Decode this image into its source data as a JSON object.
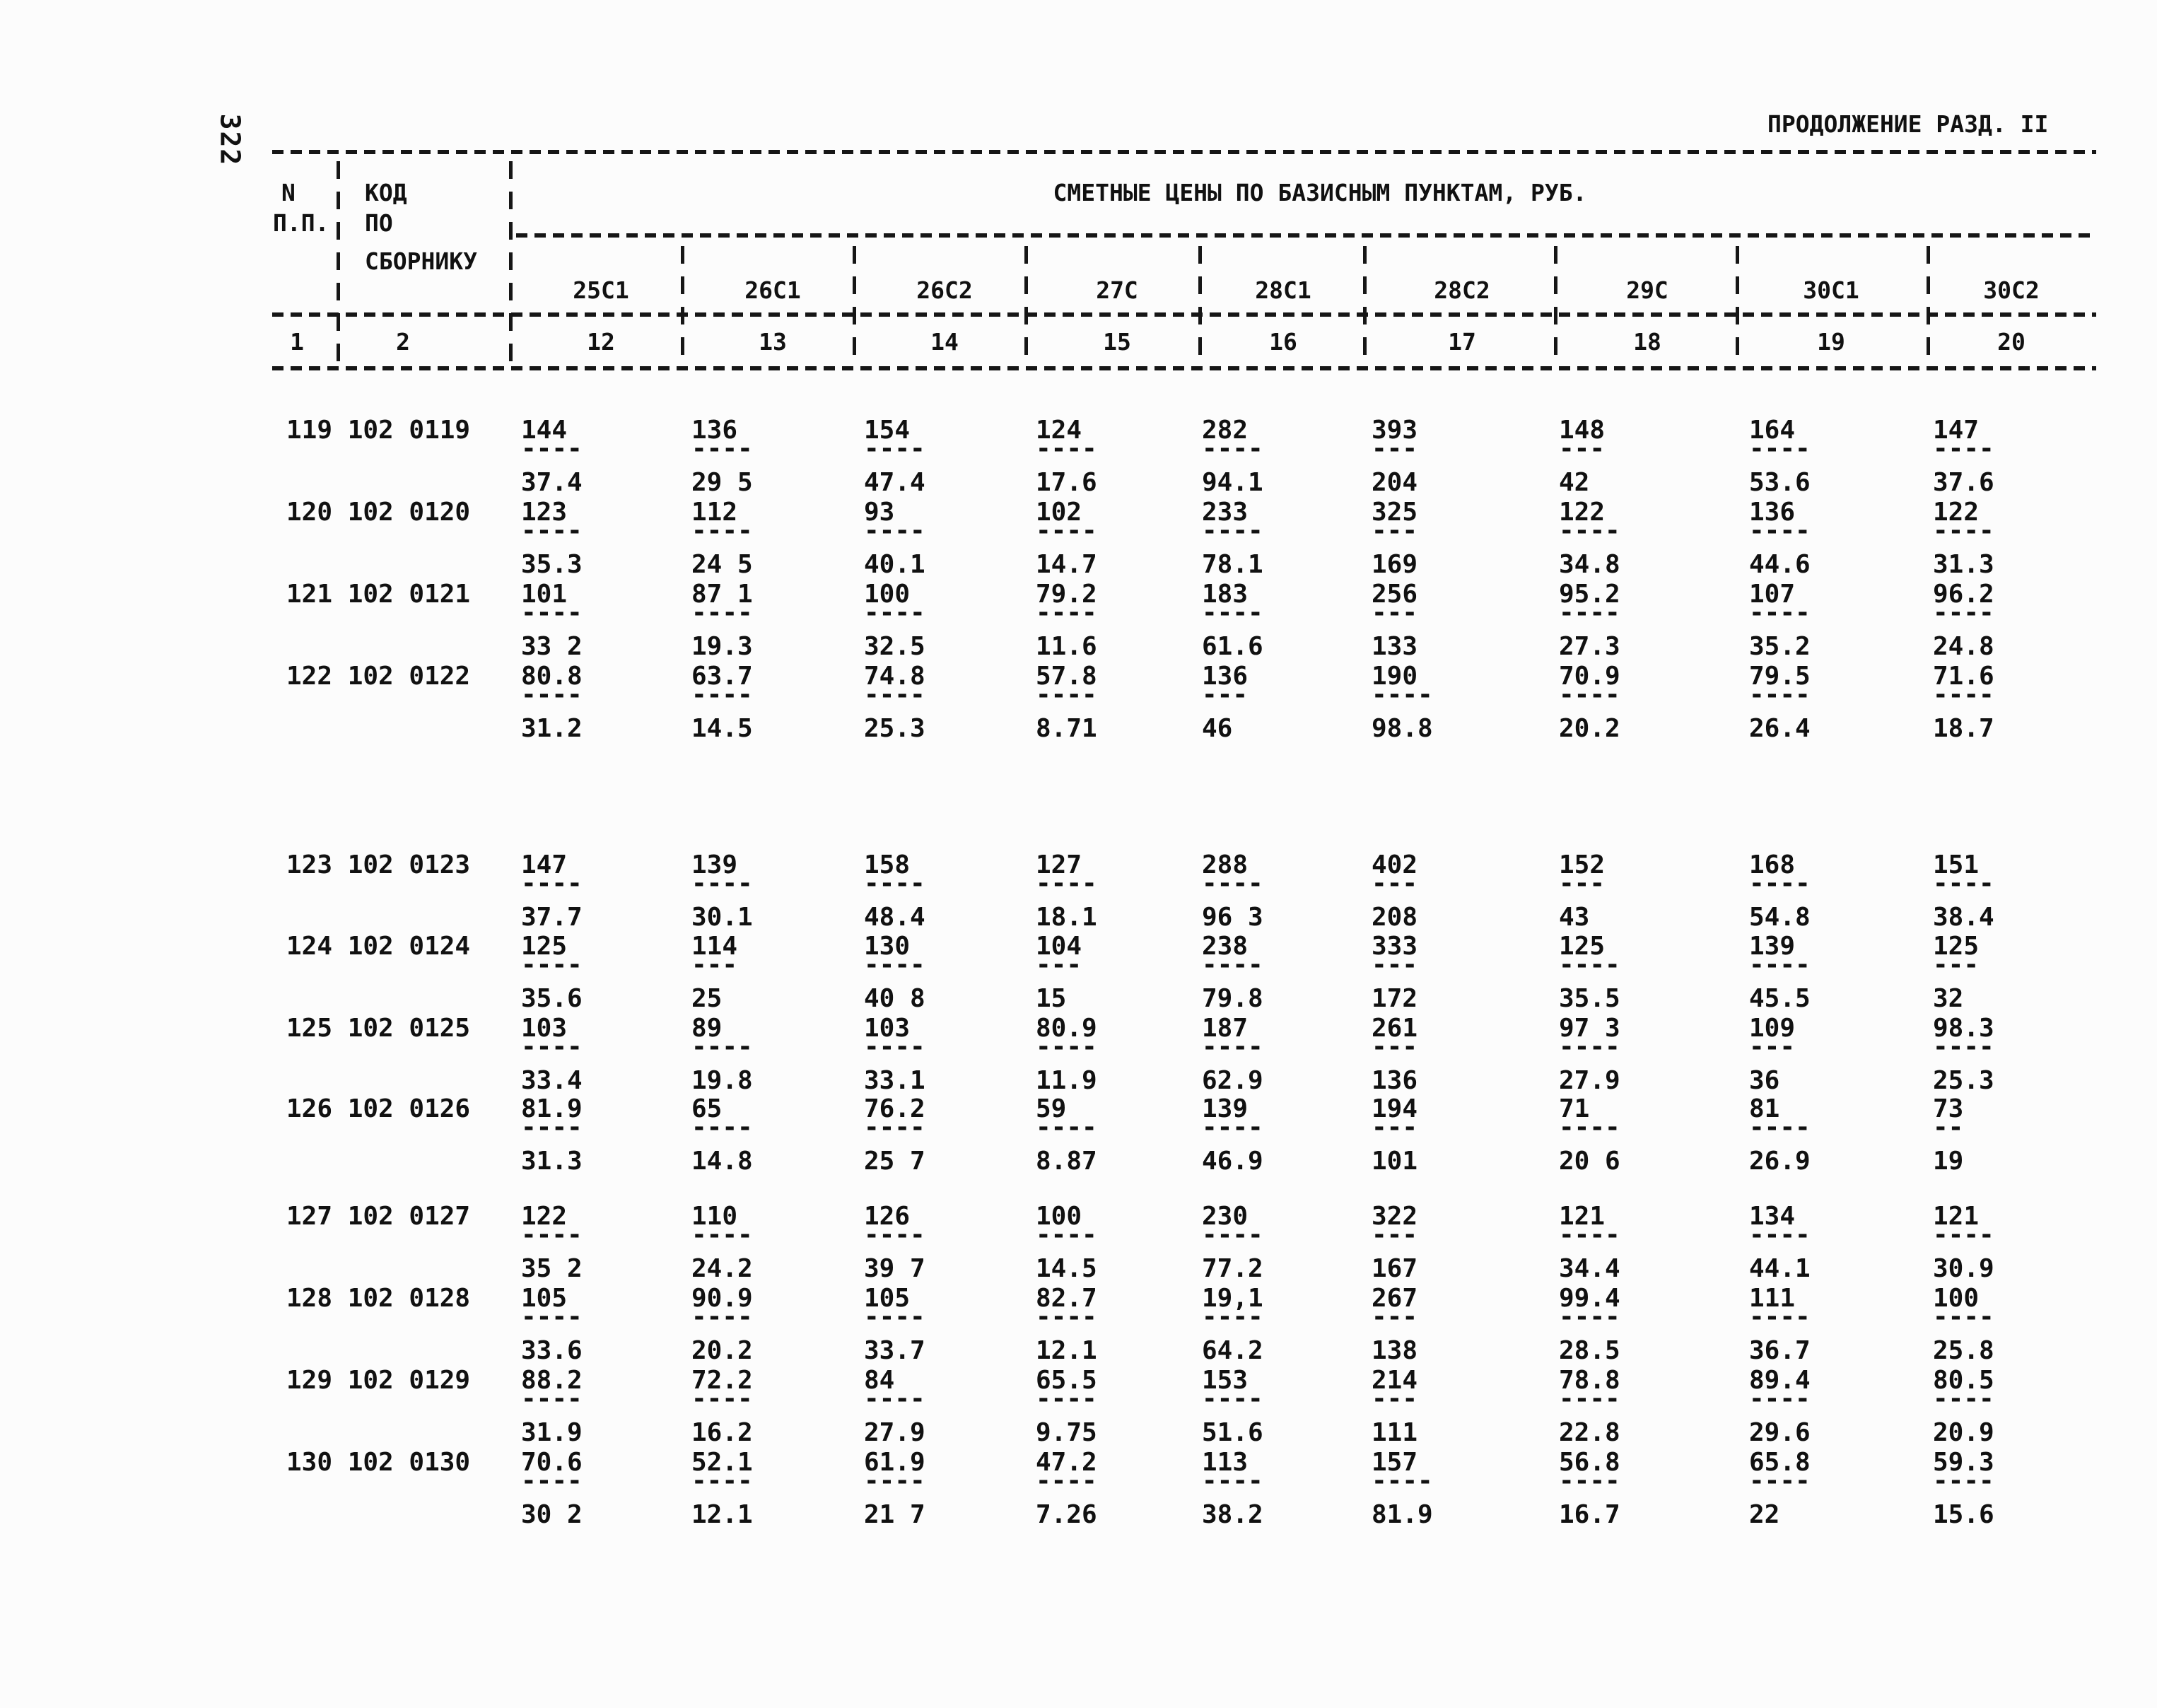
{
  "page": {
    "page_number": "322",
    "title": "ПРОДОЛЖЕНИЕ РАЗД. II"
  },
  "table": {
    "header": {
      "col1_line1": "N",
      "col1_line2": "П.П.",
      "col2_line1": "КОД",
      "col2_line2": "ПО",
      "col2_line3": "СБОРНИКУ",
      "span_title": "СМЕТНЫЕ ЦЕНЫ ПО БАЗИСНЫМ ПУНКТАМ, РУБ.",
      "columns": [
        "25С1",
        "26С1",
        "26С2",
        "27С",
        "28С1",
        "28С2",
        "29С",
        "30С1",
        "30С2"
      ],
      "col_numbers": [
        "12",
        "13",
        "14",
        "15",
        "16",
        "17",
        "18",
        "19",
        "20"
      ],
      "col1_number": "1",
      "col2_number": "2"
    },
    "rows": [
      {
        "n": "119",
        "code": "102 0119",
        "cells": [
          [
            "144",
            "----",
            "37.4"
          ],
          [
            "136",
            "----",
            "29 5"
          ],
          [
            "154",
            "----",
            "47.4"
          ],
          [
            "124",
            "----",
            "17.6"
          ],
          [
            "282",
            "----",
            "94.1"
          ],
          [
            "393",
            "---",
            "204"
          ],
          [
            "148",
            "---",
            "42"
          ],
          [
            "164",
            "----",
            "53.6"
          ],
          [
            "147",
            "----",
            "37.6"
          ]
        ]
      },
      {
        "n": "120",
        "code": "102 0120",
        "cells": [
          [
            "123",
            "----",
            "35.3"
          ],
          [
            "112",
            "----",
            "24 5"
          ],
          [
            "93",
            "----",
            "40.1"
          ],
          [
            "102",
            "----",
            "14.7"
          ],
          [
            "233",
            "----",
            "78.1"
          ],
          [
            "325",
            "---",
            "169"
          ],
          [
            "122",
            "----",
            "34.8"
          ],
          [
            "136",
            "----",
            "44.6"
          ],
          [
            "122",
            "----",
            "31.3"
          ]
        ]
      },
      {
        "n": "121",
        "code": "102 0121",
        "cells": [
          [
            "101",
            "----",
            "33 2"
          ],
          [
            "87 1",
            "----",
            "19.3"
          ],
          [
            "100",
            "----",
            "32.5"
          ],
          [
            "79.2",
            "----",
            "11.6"
          ],
          [
            "183",
            "----",
            "61.6"
          ],
          [
            "256",
            "---",
            "133"
          ],
          [
            "95.2",
            "----",
            "27.3"
          ],
          [
            "107",
            "----",
            "35.2"
          ],
          [
            "96.2",
            "----",
            "24.8"
          ]
        ]
      },
      {
        "n": "122",
        "code": "102 0122",
        "cells": [
          [
            "80.8",
            "----",
            "31.2"
          ],
          [
            "63.7",
            "----",
            "14.5"
          ],
          [
            "74.8",
            "----",
            "25.3"
          ],
          [
            "57.8",
            "----",
            "8.71"
          ],
          [
            "136",
            "---",
            "46"
          ],
          [
            "190",
            "----",
            "98.8"
          ],
          [
            "70.9",
            "----",
            "20.2"
          ],
          [
            "79.5",
            "----",
            "26.4"
          ],
          [
            "71.6",
            "----",
            "18.7"
          ]
        ]
      },
      {
        "n": "123",
        "code": "102 0123",
        "cells": [
          [
            "147",
            "----",
            "37.7"
          ],
          [
            "139",
            "----",
            "30.1"
          ],
          [
            "158",
            "----",
            "48.4"
          ],
          [
            "127",
            "----",
            "18.1"
          ],
          [
            "288",
            "----",
            "96 3"
          ],
          [
            "402",
            "---",
            "208"
          ],
          [
            "152",
            "---",
            "43"
          ],
          [
            "168",
            "----",
            "54.8"
          ],
          [
            "151",
            "----",
            "38.4"
          ]
        ]
      },
      {
        "n": "124",
        "code": "102 0124",
        "cells": [
          [
            "125",
            "----",
            "35.6"
          ],
          [
            "114",
            "---",
            "25"
          ],
          [
            "130",
            "----",
            "40 8"
          ],
          [
            "104",
            "---",
            "15"
          ],
          [
            "238",
            "----",
            "79.8"
          ],
          [
            "333",
            "---",
            "172"
          ],
          [
            "125",
            "----",
            "35.5"
          ],
          [
            "139",
            "----",
            "45.5"
          ],
          [
            "125",
            "---",
            "32"
          ]
        ]
      },
      {
        "n": "125",
        "code": "102 0125",
        "cells": [
          [
            "103",
            "----",
            "33.4"
          ],
          [
            "89",
            "----",
            "19.8"
          ],
          [
            "103",
            "----",
            "33.1"
          ],
          [
            "80.9",
            "----",
            "11.9"
          ],
          [
            "187",
            "----",
            "62.9"
          ],
          [
            "261",
            "---",
            "136"
          ],
          [
            "97 3",
            "----",
            "27.9"
          ],
          [
            "109",
            "---",
            "36"
          ],
          [
            "98.3",
            "----",
            "25.3"
          ]
        ]
      },
      {
        "n": "126",
        "code": "102 0126",
        "cells": [
          [
            "81.9",
            "----",
            "31.3"
          ],
          [
            "65",
            "----",
            "14.8"
          ],
          [
            "76.2",
            "----",
            "25 7"
          ],
          [
            "59",
            "----",
            "8.87"
          ],
          [
            "139",
            "----",
            "46.9"
          ],
          [
            "194",
            "---",
            "101"
          ],
          [
            "71",
            "----",
            "20 6"
          ],
          [
            "81",
            "----",
            "26.9"
          ],
          [
            "73",
            "--",
            "19"
          ]
        ]
      },
      {
        "n": "127",
        "code": "102 0127",
        "cells": [
          [
            "122",
            "----",
            "35 2"
          ],
          [
            "110",
            "----",
            "24.2"
          ],
          [
            "126",
            "----",
            "39 7"
          ],
          [
            "100",
            "----",
            "14.5"
          ],
          [
            "230",
            "----",
            "77.2"
          ],
          [
            "322",
            "---",
            "167"
          ],
          [
            "121",
            "----",
            "34.4"
          ],
          [
            "134",
            "----",
            "44.1"
          ],
          [
            "121",
            "----",
            "30.9"
          ]
        ]
      },
      {
        "n": "128",
        "code": "102 0128",
        "cells": [
          [
            "105",
            "----",
            "33.6"
          ],
          [
            "90.9",
            "----",
            "20.2"
          ],
          [
            "105",
            "----",
            "33.7"
          ],
          [
            "82.7",
            "----",
            "12.1"
          ],
          [
            "19,1",
            "----",
            "64.2"
          ],
          [
            "267",
            "---",
            "138"
          ],
          [
            "99.4",
            "----",
            "28.5"
          ],
          [
            "111",
            "----",
            "36.7"
          ],
          [
            "100",
            "----",
            "25.8"
          ]
        ]
      },
      {
        "n": "129",
        "code": "102 0129",
        "cells": [
          [
            "88.2",
            "----",
            "31.9"
          ],
          [
            "72.2",
            "----",
            "16.2"
          ],
          [
            "84",
            "----",
            "27.9"
          ],
          [
            "65.5",
            "----",
            "9.75"
          ],
          [
            "153",
            "----",
            "51.6"
          ],
          [
            "214",
            "---",
            "111"
          ],
          [
            "78.8",
            "----",
            "22.8"
          ],
          [
            "89.4",
            "----",
            "29.6"
          ],
          [
            "80.5",
            "----",
            "20.9"
          ]
        ]
      },
      {
        "n": "130",
        "code": "102 0130",
        "cells": [
          [
            "70.6",
            "----",
            "30 2"
          ],
          [
            "52.1",
            "----",
            "12.1"
          ],
          [
            "61.9",
            "----",
            "21 7"
          ],
          [
            "47.2",
            "----",
            "7.26"
          ],
          [
            "113",
            "----",
            "38.2"
          ],
          [
            "157",
            "----",
            "81.9"
          ],
          [
            "56.8",
            "----",
            "16.7"
          ],
          [
            "65.8",
            "----",
            "22"
          ],
          [
            "59.3",
            "----",
            "15.6"
          ]
        ]
      }
    ]
  }
}
